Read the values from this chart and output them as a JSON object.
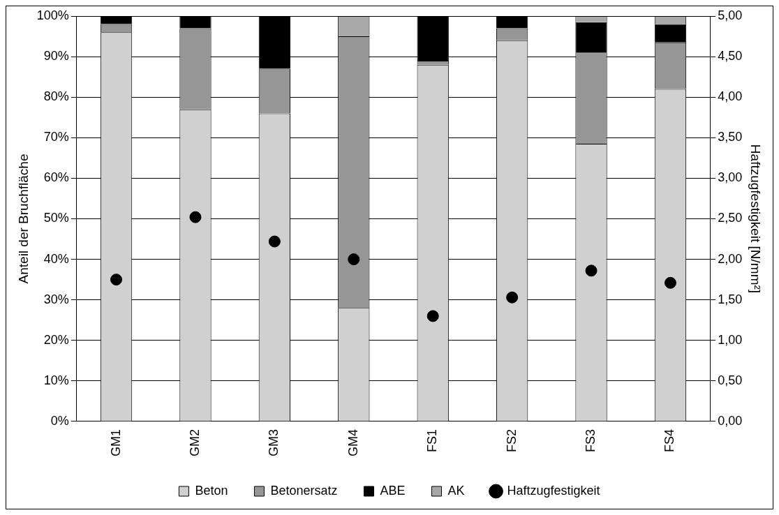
{
  "chart_data": {
    "type": "bar",
    "stacked": true,
    "ylabel": "Anteil der Bruchfläche",
    "y2label": "Haftzugfestigkeit [N/mm²]",
    "categories": [
      "GM1",
      "GM2",
      "GM3",
      "GM4",
      "FS1",
      "FS2",
      "FS3",
      "FS4"
    ],
    "series": [
      {
        "name": "Beton",
        "color": "#d0d0d0",
        "values": [
          96,
          77,
          76,
          28,
          88,
          94,
          68.5,
          82
        ]
      },
      {
        "name": "Betonersatz",
        "color": "#969696",
        "values": [
          2,
          20,
          11,
          67,
          1,
          3,
          22.5,
          11.5
        ]
      },
      {
        "name": "ABE",
        "color": "#000000",
        "values": [
          2,
          3,
          13,
          0,
          11,
          3,
          7.5,
          4.5
        ]
      },
      {
        "name": "AK",
        "color": "#a8a8a8",
        "values": [
          0,
          0,
          0,
          5,
          0,
          0,
          1.5,
          2
        ]
      },
      {
        "name": "Haftzugfestigkeit",
        "type": "scatter",
        "axis": "y2",
        "color": "#000000",
        "marker": "circle",
        "x": [
          "GM1",
          "GM2",
          "GM3",
          "GM4",
          "FS1",
          "FS2",
          "FS3",
          "FS4"
        ],
        "values": [
          1.75,
          2.52,
          2.22,
          2.0,
          1.3,
          1.53,
          1.86,
          1.71
        ]
      }
    ],
    "ylim": [
      0,
      100
    ],
    "yticks": [
      {
        "value": 0,
        "label": "0%"
      },
      {
        "value": 10,
        "label": "10%"
      },
      {
        "value": 20,
        "label": "20%"
      },
      {
        "value": 30,
        "label": "30%"
      },
      {
        "value": 40,
        "label": "40%"
      },
      {
        "value": 50,
        "label": "50%"
      },
      {
        "value": 60,
        "label": "60%"
      },
      {
        "value": 70,
        "label": "70%"
      },
      {
        "value": 80,
        "label": "80%"
      },
      {
        "value": 90,
        "label": "90%"
      },
      {
        "value": 100,
        "label": "100%"
      }
    ],
    "y2lim": [
      0,
      5
    ],
    "y2ticks": [
      {
        "value": 0,
        "label": "0,00"
      },
      {
        "value": 0.5,
        "label": "0,50"
      },
      {
        "value": 1,
        "label": "1,00"
      },
      {
        "value": 1.5,
        "label": "1,50"
      },
      {
        "value": 2,
        "label": "2,00"
      },
      {
        "value": 2.5,
        "label": "2,50"
      },
      {
        "value": 3,
        "label": "3,00"
      },
      {
        "value": 3.5,
        "label": "3,50"
      },
      {
        "value": 4,
        "label": "4,00"
      },
      {
        "value": 4.5,
        "label": "4,50"
      },
      {
        "value": 5,
        "label": "5,00"
      }
    ],
    "grid": "y",
    "legend": "bottom"
  }
}
